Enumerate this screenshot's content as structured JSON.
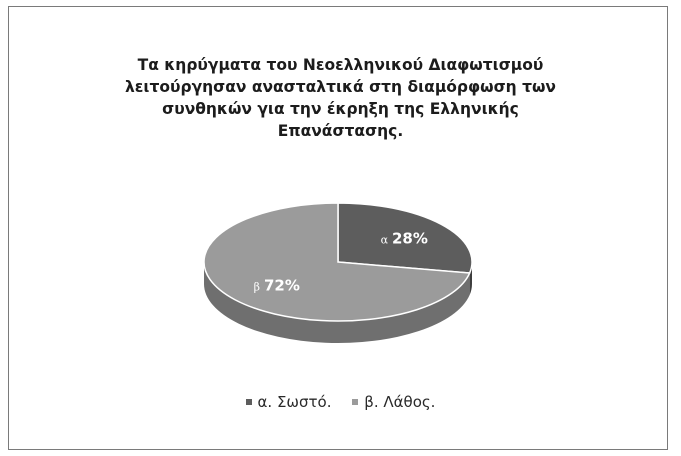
{
  "chart_data": {
    "type": "pie",
    "title_lines": [
      "Τα κηρύγματα του Νεοελληνικού Διαφωτισμού",
      "λειτούργησαν ανασταλτικά στη διαμόρφωση των",
      "συνθηκών για την έκρηξη της Ελληνικής",
      "Επανάστασης."
    ],
    "slices": [
      {
        "letter": "α",
        "label": "28%",
        "value": 28,
        "legend": "α. Σωστό.",
        "color": "#5d5d5d",
        "side_color": "#3e3e3e"
      },
      {
        "letter": "β",
        "label": "72%",
        "value": 72,
        "legend": "β. Λάθος.",
        "color": "#9b9b9b",
        "side_color": "#6f6f6f"
      }
    ],
    "legend_position": "bottom",
    "style": "3d"
  }
}
